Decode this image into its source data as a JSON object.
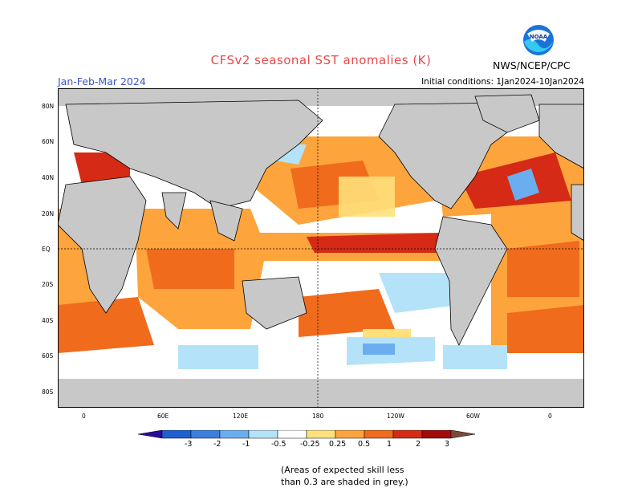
{
  "header": {
    "title": "CFSv2 seasonal SST anomalies (K)",
    "season": "Jan-Feb-Mar 2024",
    "initial_conditions": "Initial conditions: 1Jan2024-10Jan2024",
    "agency": "NWS/NCEP/CPC",
    "logo_text": "NOAA"
  },
  "axes": {
    "lat_labels": [
      "80N",
      "60N",
      "40N",
      "20N",
      "EQ",
      "20S",
      "40S",
      "60S",
      "80S"
    ],
    "lon_labels": [
      "0",
      "60E",
      "120E",
      "180",
      "120W",
      "60W",
      "0"
    ]
  },
  "colorbar": {
    "labels": [
      "-3",
      "-2",
      "-1",
      "-0.5",
      "-0.25",
      "0.25",
      "0.5",
      "1",
      "2",
      "3"
    ],
    "colors": [
      "#2a0a9a",
      "#1e5fd0",
      "#3c7fe0",
      "#6aaef0",
      "#b4e2f8",
      "#ffffff",
      "#ffe07a",
      "#fda43d",
      "#f06b1b",
      "#d52a15",
      "#a30b0b",
      "#7a4a3a"
    ]
  },
  "legend_note": {
    "line1": "(Areas of expected skill less",
    "line2": "than 0.3 are shaded in grey.)"
  },
  "colors": {
    "land": "#c8c8c8",
    "title": "#e8494a",
    "season": "#3b55c8"
  }
}
